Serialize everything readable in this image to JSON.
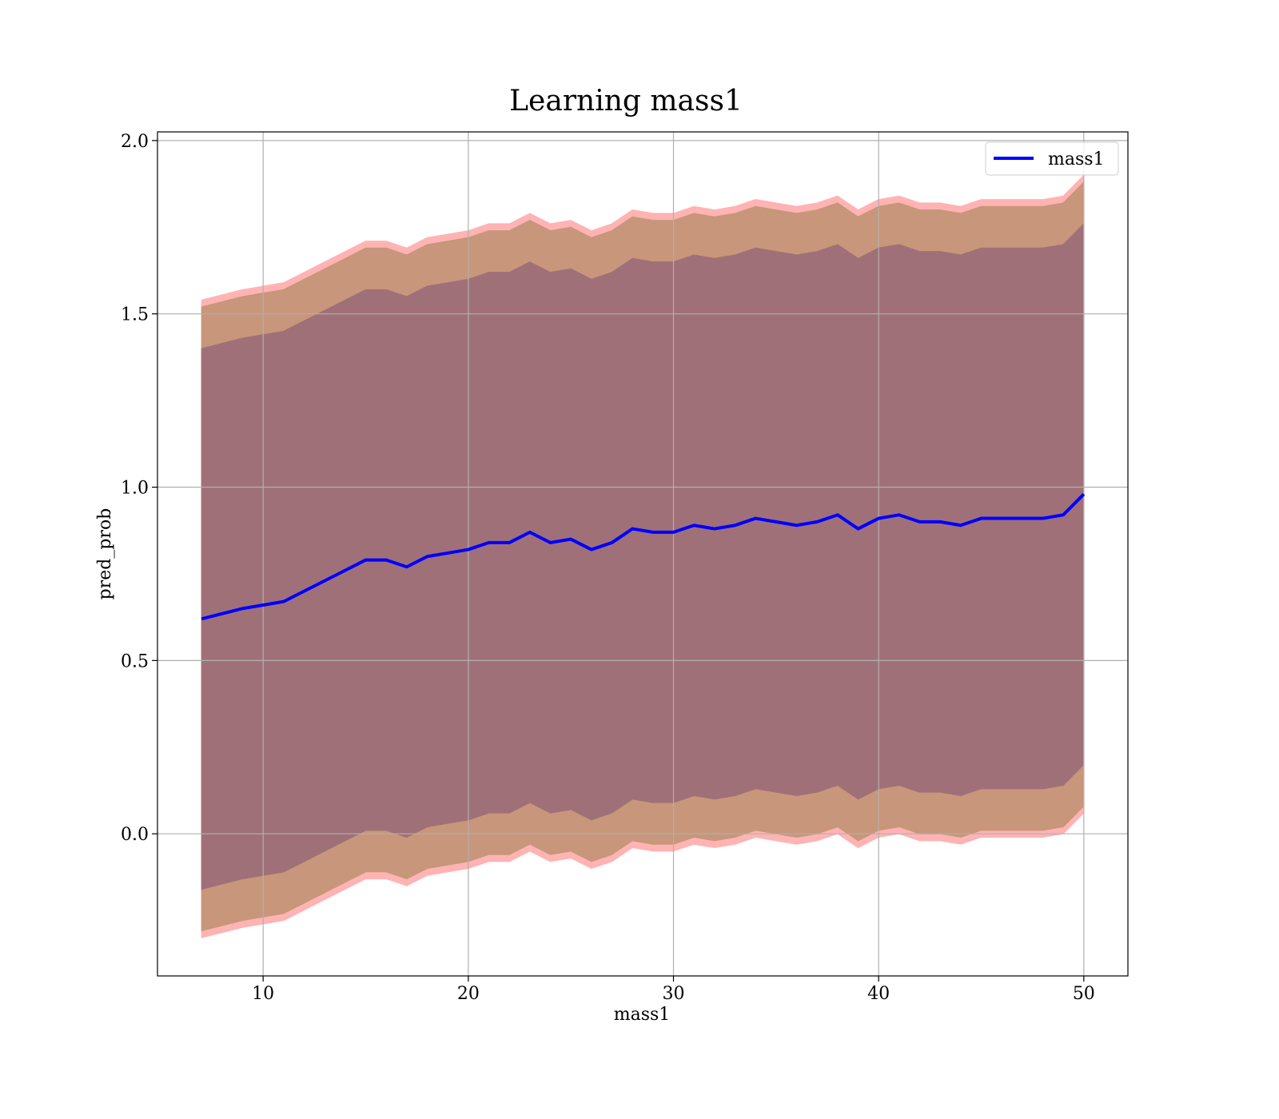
{
  "chart_data": {
    "type": "line",
    "title": "Learning mass1",
    "xlabel": "mass1",
    "ylabel": "pred_prob",
    "x": [
      7,
      8,
      9,
      10,
      11,
      12,
      13,
      14,
      15,
      16,
      17,
      18,
      19,
      20,
      21,
      22,
      23,
      24,
      25,
      26,
      27,
      28,
      29,
      30,
      31,
      32,
      33,
      34,
      35,
      36,
      37,
      38,
      39,
      40,
      41,
      42,
      43,
      44,
      45,
      46,
      47,
      48,
      49,
      50
    ],
    "series": [
      {
        "name": "mass1",
        "color": "#0000ff",
        "values": [
          0.62,
          0.635,
          0.65,
          0.66,
          0.67,
          0.7,
          0.73,
          0.76,
          0.79,
          0.79,
          0.77,
          0.8,
          0.81,
          0.82,
          0.84,
          0.84,
          0.87,
          0.84,
          0.85,
          0.82,
          0.84,
          0.88,
          0.87,
          0.87,
          0.89,
          0.88,
          0.89,
          0.91,
          0.9,
          0.89,
          0.9,
          0.92,
          0.88,
          0.91,
          0.92,
          0.9,
          0.9,
          0.89,
          0.91,
          0.91,
          0.91,
          0.91,
          0.92,
          0.98
        ]
      }
    ],
    "bands": [
      {
        "color": "#ffb3b3",
        "upper": [
          1.54,
          1.555,
          1.57,
          1.58,
          1.59,
          1.62,
          1.65,
          1.68,
          1.71,
          1.71,
          1.69,
          1.72,
          1.73,
          1.74,
          1.76,
          1.76,
          1.79,
          1.76,
          1.77,
          1.74,
          1.76,
          1.8,
          1.79,
          1.79,
          1.81,
          1.8,
          1.81,
          1.83,
          1.82,
          1.81,
          1.82,
          1.84,
          1.8,
          1.83,
          1.84,
          1.82,
          1.82,
          1.81,
          1.83,
          1.83,
          1.83,
          1.83,
          1.84,
          1.9
        ],
        "lower": [
          -0.3,
          -0.285,
          -0.27,
          -0.26,
          -0.25,
          -0.22,
          -0.19,
          -0.16,
          -0.13,
          -0.13,
          -0.15,
          -0.12,
          -0.11,
          -0.1,
          -0.08,
          -0.08,
          -0.05,
          -0.08,
          -0.07,
          -0.1,
          -0.08,
          -0.04,
          -0.05,
          -0.05,
          -0.03,
          -0.04,
          -0.03,
          -0.01,
          -0.02,
          -0.03,
          -0.02,
          0.0,
          -0.04,
          -0.01,
          0.0,
          -0.02,
          -0.02,
          -0.03,
          -0.01,
          -0.01,
          -0.01,
          -0.01,
          0.0,
          0.06
        ]
      },
      {
        "color": "#c8967a",
        "upper": [
          1.52,
          1.535,
          1.55,
          1.56,
          1.57,
          1.6,
          1.63,
          1.66,
          1.69,
          1.69,
          1.67,
          1.7,
          1.71,
          1.72,
          1.74,
          1.74,
          1.77,
          1.74,
          1.75,
          1.72,
          1.74,
          1.78,
          1.77,
          1.77,
          1.79,
          1.78,
          1.79,
          1.81,
          1.8,
          1.79,
          1.8,
          1.82,
          1.78,
          1.81,
          1.82,
          1.8,
          1.8,
          1.79,
          1.81,
          1.81,
          1.81,
          1.81,
          1.82,
          1.88
        ],
        "lower": [
          -0.28,
          -0.265,
          -0.25,
          -0.24,
          -0.23,
          -0.2,
          -0.17,
          -0.14,
          -0.11,
          -0.11,
          -0.13,
          -0.1,
          -0.09,
          -0.08,
          -0.06,
          -0.06,
          -0.03,
          -0.06,
          -0.05,
          -0.08,
          -0.06,
          -0.02,
          -0.03,
          -0.03,
          -0.01,
          -0.02,
          -0.01,
          0.01,
          0.0,
          -0.01,
          0.0,
          0.02,
          -0.02,
          0.01,
          0.02,
          0.0,
          0.0,
          -0.01,
          0.01,
          0.01,
          0.01,
          0.01,
          0.02,
          0.08
        ]
      },
      {
        "color": "#a07078",
        "upper": [
          1.4,
          1.415,
          1.43,
          1.44,
          1.45,
          1.48,
          1.51,
          1.54,
          1.57,
          1.57,
          1.55,
          1.58,
          1.59,
          1.6,
          1.62,
          1.62,
          1.65,
          1.62,
          1.63,
          1.6,
          1.62,
          1.66,
          1.65,
          1.65,
          1.67,
          1.66,
          1.67,
          1.69,
          1.68,
          1.67,
          1.68,
          1.7,
          1.66,
          1.69,
          1.7,
          1.68,
          1.68,
          1.67,
          1.69,
          1.69,
          1.69,
          1.69,
          1.7,
          1.76
        ],
        "lower": [
          -0.16,
          -0.145,
          -0.13,
          -0.12,
          -0.11,
          -0.08,
          -0.05,
          -0.02,
          0.01,
          0.01,
          -0.01,
          0.02,
          0.03,
          0.04,
          0.06,
          0.06,
          0.09,
          0.06,
          0.07,
          0.04,
          0.06,
          0.1,
          0.09,
          0.09,
          0.11,
          0.1,
          0.11,
          0.13,
          0.12,
          0.11,
          0.12,
          0.14,
          0.1,
          0.13,
          0.14,
          0.12,
          0.12,
          0.11,
          0.13,
          0.13,
          0.13,
          0.13,
          0.14,
          0.2
        ]
      }
    ],
    "xlim": [
      4.85,
      52.15
    ],
    "xticks": [
      10,
      20,
      30,
      40,
      50
    ],
    "ylim": [
      -0.41,
      2.025
    ],
    "yticks": [
      {
        "value": 0,
        "label": "0.0"
      },
      0.5,
      {
        "value": 1,
        "label": "1.0"
      },
      1.5,
      {
        "value": 2,
        "label": "2.0"
      }
    ],
    "grid": true,
    "legend": "upper right"
  }
}
